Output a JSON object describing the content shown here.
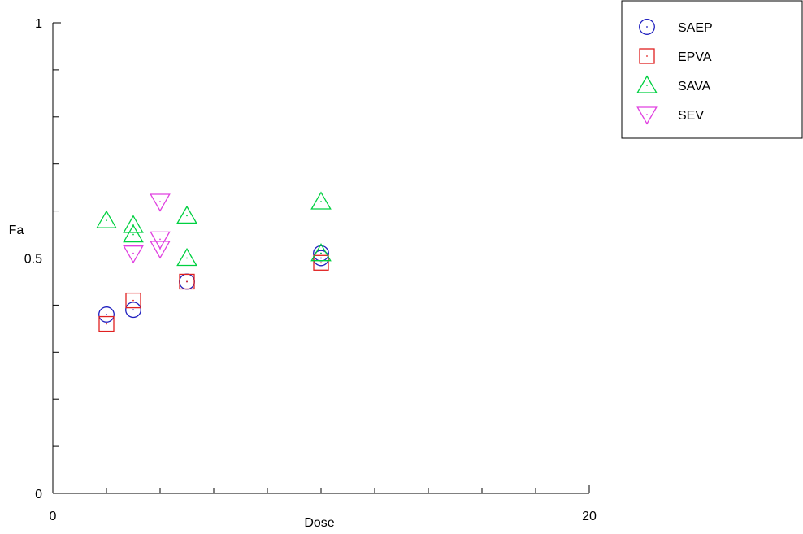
{
  "chart_data": {
    "type": "scatter",
    "title": "",
    "xlabel": "Dose",
    "ylabel": "Fa",
    "xlim": [
      0,
      20
    ],
    "ylim": [
      0,
      1
    ],
    "x_ticks": [
      {
        "value": 0,
        "label": "0"
      },
      {
        "value": 20,
        "label": "20"
      }
    ],
    "y_ticks": [
      {
        "value": 0,
        "label": "0"
      },
      {
        "value": 0.5,
        "label": "0.5"
      },
      {
        "value": 1,
        "label": "1"
      }
    ],
    "x_minor_ticks": [
      2,
      4,
      6,
      8,
      10,
      12,
      14,
      16,
      18
    ],
    "y_minor_ticks": [
      0.1,
      0.2,
      0.3,
      0.4,
      0.6,
      0.7,
      0.8,
      0.9
    ],
    "grid": false,
    "legend_position": "top-right",
    "series": [
      {
        "name": "SAEP",
        "marker": "circle",
        "color": "#1f1fbf",
        "points": [
          {
            "x": 2,
            "y": 0.38
          },
          {
            "x": 3,
            "y": 0.39
          },
          {
            "x": 5,
            "y": 0.45
          },
          {
            "x": 10,
            "y": 0.5
          },
          {
            "x": 10,
            "y": 0.51
          }
        ]
      },
      {
        "name": "EPVA",
        "marker": "square",
        "color": "#e02020",
        "points": [
          {
            "x": 2,
            "y": 0.36
          },
          {
            "x": 3,
            "y": 0.41
          },
          {
            "x": 5,
            "y": 0.45
          },
          {
            "x": 10,
            "y": 0.49
          }
        ]
      },
      {
        "name": "SAVA",
        "marker": "triangle-up",
        "color": "#00d040",
        "points": [
          {
            "x": 2,
            "y": 0.58
          },
          {
            "x": 3,
            "y": 0.57
          },
          {
            "x": 3,
            "y": 0.55
          },
          {
            "x": 5,
            "y": 0.59
          },
          {
            "x": 5,
            "y": 0.5
          },
          {
            "x": 10,
            "y": 0.62
          },
          {
            "x": 10,
            "y": 0.51
          }
        ]
      },
      {
        "name": "SEV",
        "marker": "triangle-down",
        "color": "#e040e0",
        "points": [
          {
            "x": 4,
            "y": 0.62
          },
          {
            "x": 4,
            "y": 0.54
          },
          {
            "x": 4,
            "y": 0.52
          },
          {
            "x": 3,
            "y": 0.51
          }
        ]
      }
    ]
  }
}
